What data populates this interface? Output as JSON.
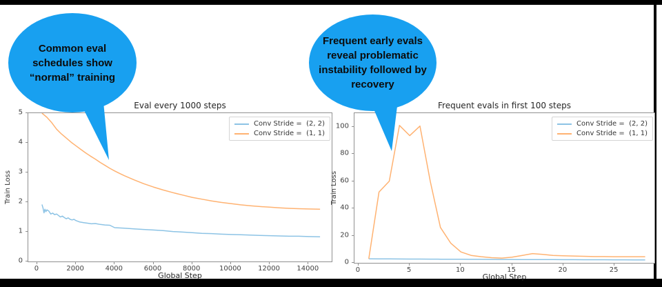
{
  "frame": {
    "border_color": "#000000"
  },
  "bubbles": {
    "left": {
      "color": "#18a0f0",
      "lines": [
        "Common eval",
        "schedules show",
        "“normal” training"
      ]
    },
    "right": {
      "color": "#18a0f0",
      "lines": [
        "Frequent early evals",
        "reveal problematic",
        "instability followed by",
        "recovery"
      ]
    }
  },
  "chart_data": [
    {
      "type": "line",
      "title": "Eval every 1000 steps",
      "xlabel": "Global Step",
      "ylabel": "Train Loss",
      "xlim": [
        -460,
        15200
      ],
      "ylim": [
        0,
        5
      ],
      "xticks": [
        0,
        2000,
        4000,
        6000,
        8000,
        10000,
        12000,
        14000
      ],
      "yticks": [
        0,
        1,
        2,
        3,
        4,
        5
      ],
      "grid": false,
      "legend_position": "top-right",
      "series": [
        {
          "name": "Conv Stride =  (2, 2)",
          "color": "#8cc3e5",
          "x": [
            250,
            300,
            350,
            400,
            450,
            500,
            600,
            700,
            800,
            900,
            1000,
            1100,
            1200,
            1300,
            1400,
            1500,
            1600,
            1700,
            1800,
            1900,
            2000,
            2200,
            2400,
            2600,
            2800,
            3000,
            3250,
            3500,
            3750,
            4000,
            4250,
            4500,
            5000,
            5500,
            6000,
            6500,
            7000,
            7500,
            8000,
            8500,
            9000,
            9500,
            10000,
            10500,
            11000,
            11500,
            12000,
            12500,
            13000,
            13500,
            14000,
            14600
          ],
          "y": [
            1.92,
            1.8,
            1.64,
            1.76,
            1.68,
            1.74,
            1.7,
            1.6,
            1.63,
            1.58,
            1.6,
            1.55,
            1.5,
            1.53,
            1.48,
            1.44,
            1.47,
            1.42,
            1.4,
            1.42,
            1.38,
            1.33,
            1.31,
            1.29,
            1.27,
            1.28,
            1.25,
            1.23,
            1.22,
            1.14,
            1.13,
            1.12,
            1.1,
            1.08,
            1.06,
            1.04,
            1.01,
            0.99,
            0.97,
            0.95,
            0.94,
            0.92,
            0.91,
            0.9,
            0.89,
            0.88,
            0.87,
            0.86,
            0.85,
            0.85,
            0.84,
            0.83
          ]
        },
        {
          "name": "Conv Stride =  (1, 1)",
          "color": "#ffb271",
          "x": [
            250,
            500,
            750,
            1000,
            1250,
            1500,
            1750,
            2000,
            2250,
            2500,
            2750,
            3000,
            3250,
            3500,
            3750,
            4000,
            4250,
            4500,
            4750,
            5000,
            5500,
            6000,
            6500,
            7000,
            7500,
            8000,
            8500,
            9000,
            9500,
            10000,
            10500,
            11000,
            11500,
            12000,
            12500,
            13000,
            13500,
            14000,
            14600
          ],
          "y": [
            5.0,
            4.86,
            4.68,
            4.46,
            4.3,
            4.16,
            4.02,
            3.9,
            3.78,
            3.66,
            3.55,
            3.45,
            3.34,
            3.24,
            3.14,
            3.05,
            2.97,
            2.89,
            2.82,
            2.75,
            2.62,
            2.51,
            2.41,
            2.32,
            2.24,
            2.16,
            2.1,
            2.04,
            1.99,
            1.95,
            1.91,
            1.88,
            1.85,
            1.83,
            1.81,
            1.79,
            1.78,
            1.77,
            1.76
          ]
        }
      ]
    },
    {
      "type": "line",
      "title": "Frequent evals in first 100 steps",
      "xlabel": "Global Step",
      "ylabel": "Train Loss",
      "xlim": [
        -0.4,
        28.9
      ],
      "ylim": [
        0,
        110
      ],
      "xticks": [
        0,
        5,
        10,
        15,
        20,
        25
      ],
      "yticks": [
        0,
        20,
        40,
        60,
        80,
        100
      ],
      "grid": false,
      "legend_position": "top-right",
      "series": [
        {
          "name": "Conv Stride =  (2, 2)",
          "color": "#8cc3e5",
          "x": [
            1,
            2,
            3,
            4,
            5,
            6,
            7,
            8,
            9,
            10,
            11,
            12,
            13,
            14,
            15,
            16,
            17,
            18,
            19,
            20,
            21,
            22,
            23,
            24,
            25,
            26,
            27,
            28
          ],
          "y": [
            3.0,
            2.9,
            2.9,
            2.85,
            2.8,
            2.8,
            2.75,
            2.7,
            2.7,
            2.65,
            2.6,
            2.6,
            2.55,
            2.5,
            2.5,
            2.45,
            2.45,
            2.4,
            2.4,
            2.35,
            2.35,
            2.3,
            2.3,
            2.3,
            2.25,
            2.25,
            2.2,
            2.2
          ]
        },
        {
          "name": "Conv Stride =  (1, 1)",
          "color": "#ffb271",
          "x": [
            1,
            2,
            3,
            4,
            5,
            6,
            7,
            8,
            9,
            10,
            11,
            12,
            13,
            14,
            15,
            16,
            17,
            18,
            19,
            20,
            21,
            22,
            23,
            24,
            25,
            26,
            27,
            28
          ],
          "y": [
            3,
            52,
            60,
            101,
            93.5,
            100.5,
            60,
            26,
            14.5,
            8,
            5.5,
            4.5,
            3.8,
            3.5,
            4.2,
            5.5,
            6.8,
            6.2,
            5.5,
            5.2,
            5.0,
            4.8,
            4.6,
            4.6,
            4.5,
            4.5,
            4.5,
            4.5
          ]
        }
      ]
    }
  ]
}
